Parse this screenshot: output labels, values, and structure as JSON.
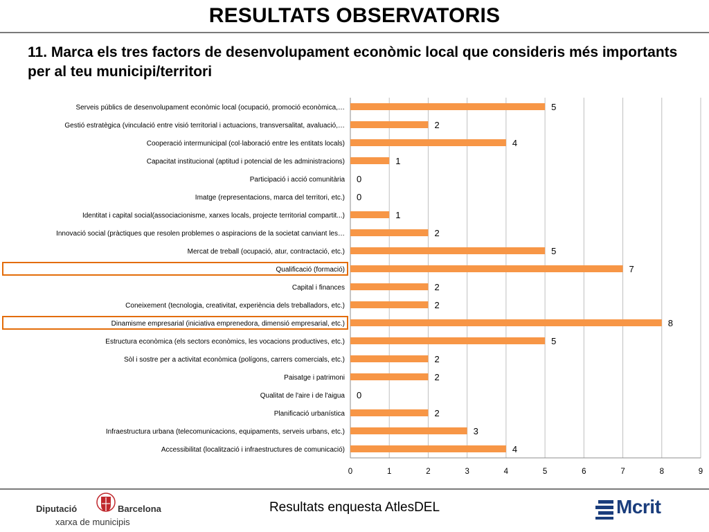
{
  "header": {
    "title": "RESULTATS OBSERVATORIS",
    "question": "11. Marca els tres factors de desenvolupament econòmic local que consideris més importants per al teu municipi/territori"
  },
  "footer": {
    "text": "Resultats enquesta AtlesDEL",
    "logo_left_word1": "Diputació",
    "logo_left_word2": "Barcelona",
    "logo_left_sub": "xarxa de municipis",
    "logo_right": "Mcrit"
  },
  "colors": {
    "bar": "#f79646",
    "highlight_box": "#e36c09",
    "grid": "#bfbfbf",
    "mcrit_blue": "#1a3d7c",
    "shield_red": "#c0282d"
  },
  "chart_data": {
    "type": "bar",
    "orientation": "horizontal",
    "categories": [
      "Serveis públics de desenvolupament econòmic local (ocupació, promoció econòmica,…",
      "Gestió estratègica (vinculació entre visió territorial i actuacions, transversalitat, avaluació,…",
      "Cooperació intermunicipal (col·laboració entre les entitats locals)",
      "Capacitat institucional (aptitud i potencial de les administracions)",
      "Participació i acció comunitària",
      "Imatge (representacions, marca del territori, etc.)",
      "Identitat i capital social(associacionisme, xarxes locals, projecte territorial compartit...)",
      "Innovació social (pràctiques que resolen problemes o aspiracions de la societat canviant les…",
      "Mercat de treball (ocupació, atur, contractació, etc.)",
      "Qualificació (formació)",
      "Capital i finances",
      "Coneixement (tecnologia, creativitat, experiència dels treballadors, etc.)",
      "Dinamisme empresarial (iniciativa emprenedora, dimensió empresarial, etc.)",
      "Estructura econòmica (els sectors econòmics, les vocacions productives, etc.)",
      "Sòl i sostre per a activitat econòmica (polígons, carrers comercials, etc.)",
      "Paisatge i patrimoni",
      "Qualitat de l'aire i de l'aigua",
      "Planificació urbanística",
      "Infraestructura urbana (telecomunicacions, equipaments, serveis urbans, etc.)",
      "Accessibilitat (localització i infraestructures de comunicació)"
    ],
    "values": [
      5,
      2,
      4,
      1,
      0,
      0,
      1,
      2,
      5,
      7,
      2,
      2,
      8,
      5,
      2,
      2,
      0,
      2,
      3,
      4
    ],
    "highlighted": [
      "Qualificació (formació)",
      "Dinamisme empresarial (iniciativa emprenedora, dimensió empresarial, etc.)"
    ],
    "xlim": [
      0,
      9
    ],
    "xticks": [
      "0",
      "1",
      "2",
      "3",
      "4",
      "5",
      "6",
      "7",
      "8",
      "9"
    ],
    "grid": "vertical",
    "data_labels": true,
    "legend": "none"
  }
}
